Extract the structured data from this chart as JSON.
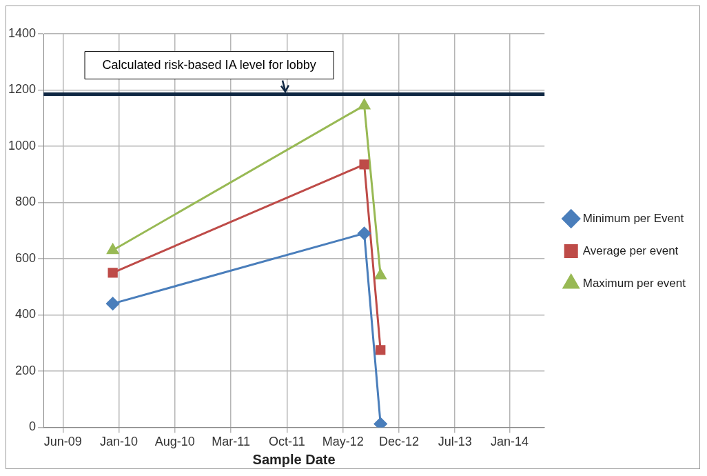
{
  "chart_data": {
    "type": "line",
    "xlabel": "Sample Date",
    "x": [
      "2010-01-01",
      "2012-08-01",
      "2012-10-01"
    ],
    "series": [
      {
        "name": "Minimum per Event",
        "color": "#4a7ebb",
        "marker": "diamond",
        "values": [
          440,
          690,
          12
        ]
      },
      {
        "name": "Average per event",
        "color": "#be4b48",
        "marker": "square",
        "values": [
          550,
          935,
          275
        ]
      },
      {
        "name": "Maximum per event",
        "color": "#98b954",
        "marker": "triangle",
        "values": [
          630,
          1145,
          540
        ]
      }
    ],
    "xlim": [
      "2009-04-16",
      "2014-06-08"
    ],
    "xticks": [
      {
        "value": "2009-06-28",
        "label": "Jun-09"
      },
      {
        "value": "2010-01-24",
        "label": "Jan-10"
      },
      {
        "value": "2010-08-22",
        "label": "Aug-10"
      },
      {
        "value": "2011-03-20",
        "label": "Mar-11"
      },
      {
        "value": "2011-10-16",
        "label": "Oct-11"
      },
      {
        "value": "2012-05-13",
        "label": "May-12"
      },
      {
        "value": "2012-12-09",
        "label": "Dec-12"
      },
      {
        "value": "2013-07-07",
        "label": "Jul-13"
      },
      {
        "value": "2014-01-28",
        "label": "Jan-14"
      }
    ],
    "ylim": [
      0,
      1400
    ],
    "yticks": [
      0,
      200,
      400,
      600,
      800,
      1000,
      1200,
      1400
    ],
    "ref_lines": [
      {
        "axis": "y",
        "value": 1185,
        "label": "Calculated risk-based IA level for lobby",
        "color": "#0f2742"
      }
    ],
    "grid": true,
    "legend": "right",
    "line_style": "solid"
  }
}
